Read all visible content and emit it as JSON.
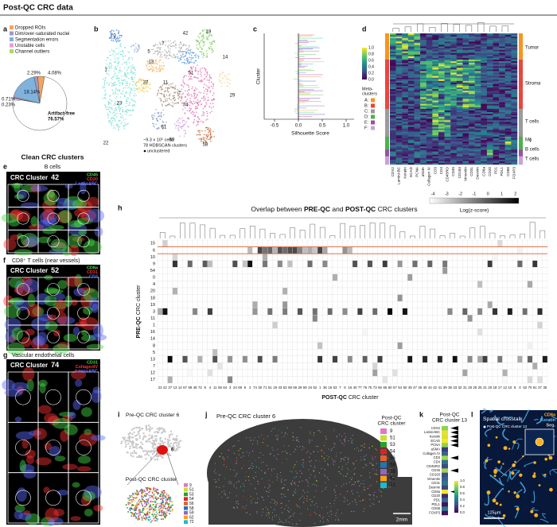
{
  "header": {
    "title": "Post-QC CRC data"
  },
  "panel_a": {
    "label": "a",
    "pie": {
      "categories": [
        "Dropped ROIs",
        "Dim/over-saturated nuclei",
        "Segmentation errors",
        "Unstable cells",
        "Channel outliers",
        "Artifact-free"
      ],
      "values": [
        4.08,
        2.29,
        18.14,
        0.71,
        0.23,
        76.57
      ],
      "value_labels": [
        "4.08%",
        "2.29%",
        "18.14%",
        "0.71%",
        "0.23%",
        "76.57%"
      ],
      "colors": [
        "#f4a460",
        "#9e9ac8",
        "#7fb2dd",
        "#f29ac8",
        "#a6d96a",
        "#ffffff"
      ]
    }
  },
  "panel_b": {
    "label": "b",
    "clusters": [
      "42",
      "19",
      "13",
      "37",
      "14",
      "51",
      "74",
      "23",
      "22",
      "0",
      "58",
      "61",
      "69",
      "29",
      "5",
      "1",
      "7",
      "11"
    ],
    "note_cells": "~9.3 x 10⁵ cells",
    "note_clusters": "78 HDBSCAN clusters",
    "note_unclustered": "unclustered"
  },
  "panel_c": {
    "label": "c",
    "y_label": "Cluster",
    "x_label": "Silhouette Score",
    "xticks": [
      "-0.5",
      "0.0",
      "0.5",
      "1.0"
    ]
  },
  "panel_d": {
    "label": "d",
    "colorbar_ticks": [
      "1.0",
      "0.8",
      "0.6",
      "0.4",
      "0.2",
      "0.0"
    ],
    "meta_title": [
      "Meta-",
      "clusters"
    ],
    "meta": [
      "A:",
      "B:",
      "C:",
      "D:",
      "E:",
      "F:"
    ],
    "meta_colors": [
      "#f7941d",
      "#e8453c",
      "#9a9a9a",
      "#4daf4a",
      "#984ea3",
      "#c9a0dc"
    ],
    "groups": [
      "Tumor",
      "Stroma",
      "T cells",
      "Mϕ",
      "B cells",
      "T cells"
    ],
    "markers": [
      "CDX2",
      "LaminABC",
      "Keratin",
      "ECAD",
      "PCNA",
      "aSMA",
      "Collagen IV",
      "CD3",
      "CD4",
      "CD45RO",
      "CD45",
      "CD163",
      "Vimentin",
      "CD31",
      "Desmin",
      "CD8a",
      "CD20",
      "PD1",
      "PDL1",
      "CD68",
      "FOXP3"
    ]
  },
  "section_title": "Clean CRC clusters",
  "panel_e": {
    "label": "e",
    "title": "B cells",
    "cluster_prefix": "CRC Cluster",
    "cluster": "42",
    "channels": [
      {
        "name": "CD45",
        "color": "#44dd44"
      },
      {
        "name": "CD20",
        "color": "#ff3030"
      },
      {
        "name": "LaminABC",
        "color": "#5a6bff"
      }
    ]
  },
  "panel_f": {
    "label": "f",
    "title": "CD8⁺ T cells (near vessels)",
    "cluster_prefix": "CRC Cluster",
    "cluster": "52",
    "channels": [
      {
        "name": "CD8a",
        "color": "#44dd44"
      },
      {
        "name": "CD31",
        "color": "#ff3030"
      },
      {
        "name": "CD3",
        "color": "#5a6bff"
      }
    ]
  },
  "panel_g": {
    "label": "g",
    "title": "Vascular endothelial cells",
    "cluster_prefix": "CRC Cluster",
    "cluster": "74",
    "channels": [
      {
        "name": "CD31",
        "color": "#44dd44"
      },
      {
        "name": "CollagenIV",
        "color": "#ff3030"
      },
      {
        "name": "LaminABC",
        "color": "#5a6bff"
      }
    ]
  },
  "panel_h": {
    "label": "h",
    "title_parts": [
      "Overlap between ",
      "PRE-QC",
      " and ",
      "POST-QC",
      " CRC clusters"
    ],
    "colorbar_ticks": [
      "-4",
      "-3",
      "-2",
      "-1",
      "0",
      "1",
      "2"
    ],
    "colorbar_label": "Log(z-score)",
    "y_label": [
      "PRE-QC",
      " CRC cluster"
    ],
    "x_label": [
      "POST-QC",
      " CRC cluster"
    ],
    "rows": [
      "15",
      "6",
      "10",
      "9",
      "54",
      "0",
      "4",
      "20",
      "18",
      "19",
      "3",
      "11",
      "1",
      "16",
      "14",
      "8",
      "5",
      "13",
      "7",
      "12",
      "17"
    ],
    "columns": [
      "23",
      "22",
      "27",
      "13",
      "14",
      "67",
      "68",
      "48",
      "72",
      "9",
      "4",
      "11",
      "55",
      "64",
      "3",
      "24",
      "69",
      "5",
      "2",
      "74",
      "30",
      "71",
      "51",
      "19",
      "43",
      "53",
      "58",
      "56",
      "29",
      "59",
      "34",
      "52",
      "1",
      "36",
      "15",
      "63",
      "7",
      "6",
      "16",
      "40",
      "77",
      "76",
      "75",
      "73",
      "66",
      "65",
      "60",
      "57",
      "54",
      "50",
      "49",
      "47",
      "46",
      "45",
      "44",
      "42",
      "41",
      "39",
      "38",
      "33",
      "32",
      "31",
      "28",
      "26",
      "25",
      "21",
      "20",
      "18",
      "17",
      "12",
      "10",
      "8",
      "0",
      "62",
      "70",
      "61",
      "37",
      "35"
    ]
  },
  "post_qc_legend": [
    {
      "name": "9",
      "color": "#e377c2"
    },
    {
      "name": "51",
      "color": "#c7e02f"
    },
    {
      "name": "53",
      "color": "#2ca02c"
    },
    {
      "name": "54",
      "color": "#d62728"
    },
    {
      "name": "56",
      "color": "#e8602c"
    },
    {
      "name": "58",
      "color": "#1f77b4"
    },
    {
      "name": "59",
      "color": "#9467bd"
    },
    {
      "name": "62",
      "color": "#ff9f1c"
    },
    {
      "name": "72",
      "color": "#17becf"
    }
  ],
  "panel_i": {
    "label": "i",
    "title": "Pre-QC CRC cluster 6",
    "highlight": "6",
    "subtitle": "Post-QC CRC cluster"
  },
  "panel_j": {
    "label": "j",
    "title": "Pre-QC CRC cluster 6",
    "legend_title": [
      "Post-QC",
      "CRC cluster"
    ],
    "scale": "2mm"
  },
  "panel_k": {
    "label": "k",
    "title": [
      "Post-QC",
      "CRC cluster 13"
    ]
  },
  "panel_l": {
    "label": "l",
    "title": "Spatial crosstalk",
    "channels": [
      {
        "name": "CD8a",
        "color": "#ffb020"
      },
      {
        "name": "Keratin",
        "color": "#5ec8ff"
      },
      {
        "name": "Seg.",
        "color": "#cccccc"
      }
    ],
    "legend": "Post-QC CRC cluster 13",
    "scale": "125µm"
  }
}
